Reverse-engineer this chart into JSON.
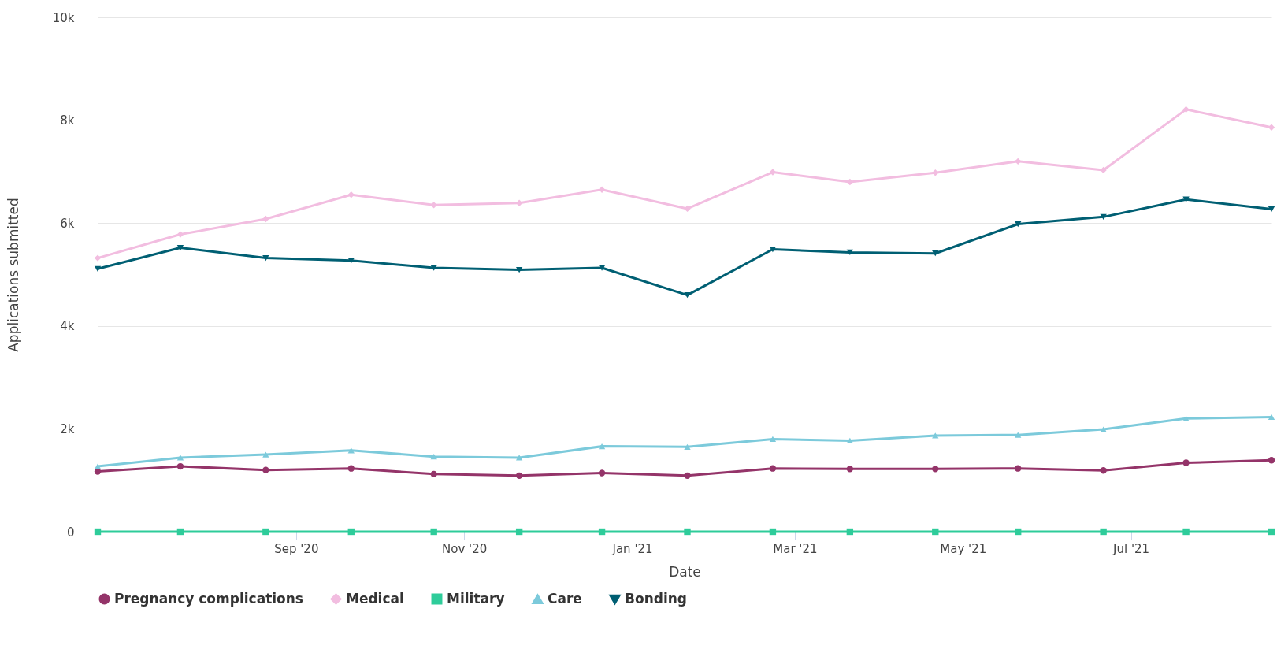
{
  "chart_data": {
    "type": "line",
    "xlabel": "Date",
    "ylabel": "Applications submitted",
    "x": [
      "2020-06-21",
      "2020-07-21",
      "2020-08-21",
      "2020-09-21",
      "2020-10-21",
      "2020-11-21",
      "2020-12-21",
      "2021-01-21",
      "2021-02-21",
      "2021-03-21",
      "2021-04-21",
      "2021-05-21",
      "2021-06-21",
      "2021-07-21",
      "2021-08-21"
    ],
    "xlim": [
      "2020-06-21",
      "2021-08-21"
    ],
    "xticks": [
      {
        "value": "2020-09-01",
        "label": "Sep '20"
      },
      {
        "value": "2020-11-01",
        "label": "Nov '20"
      },
      {
        "value": "2021-01-01",
        "label": "Jan '21"
      },
      {
        "value": "2021-03-01",
        "label": "Mar '21"
      },
      {
        "value": "2021-05-01",
        "label": "May '21"
      },
      {
        "value": "2021-07-01",
        "label": "Jul '21"
      }
    ],
    "ylim": [
      0,
      10000
    ],
    "yticks": [
      0,
      {
        "value": 2000,
        "label": "2k"
      },
      {
        "value": 4000,
        "label": "4k"
      },
      {
        "value": 6000,
        "label": "6k"
      },
      {
        "value": 8000,
        "label": "8k"
      },
      {
        "value": 10000,
        "label": "10k"
      }
    ],
    "grid": "y",
    "legend": "bottom",
    "line_style": "solid",
    "series": [
      {
        "name": "Pregnancy complications",
        "color": "#943469",
        "marker": "circle",
        "values": [
          1170,
          1270,
          1200,
          1230,
          1120,
          1090,
          1140,
          1090,
          1230,
          1220,
          1220,
          1230,
          1190,
          1340,
          1390
        ]
      },
      {
        "name": "Medical",
        "color": "#f2bde0",
        "marker": "diamond",
        "values": [
          5320,
          5780,
          6080,
          6550,
          6350,
          6390,
          6650,
          6280,
          6990,
          6800,
          6980,
          7200,
          7030,
          8210,
          7860
        ]
      },
      {
        "name": "Military",
        "color": "#2ecc9a",
        "marker": "square",
        "values": [
          0,
          0,
          0,
          0,
          0,
          0,
          0,
          0,
          0,
          0,
          0,
          0,
          0,
          0,
          0
        ]
      },
      {
        "name": "Care",
        "color": "#7ccadb",
        "marker": "triangle",
        "values": [
          1270,
          1440,
          1500,
          1580,
          1460,
          1440,
          1660,
          1650,
          1800,
          1770,
          1870,
          1880,
          1990,
          2200,
          2230
        ]
      },
      {
        "name": "Bonding",
        "color": "#005f73",
        "marker": "triangle-down",
        "values": [
          5110,
          5520,
          5320,
          5270,
          5130,
          5090,
          5130,
          4600,
          5490,
          5430,
          5410,
          5980,
          6120,
          6460,
          6270
        ]
      }
    ]
  }
}
